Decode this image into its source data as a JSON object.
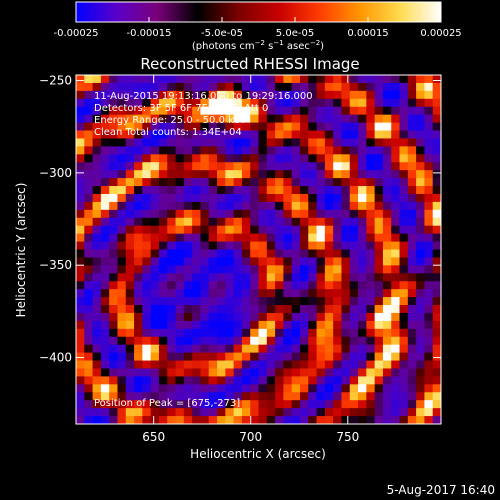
{
  "colorbar": {
    "ticks": [
      "-0.00025",
      "-0.00015",
      "-5.0e-05",
      "5.0e-05",
      "0.00015",
      "0.00025"
    ],
    "tick_values": [
      -0.00025,
      -0.00015,
      -5e-05,
      5e-05,
      0.00015,
      0.00025
    ],
    "range": [
      -0.00025,
      0.00025
    ],
    "unit": {
      "base": "(photons cm",
      "exp1": "−2",
      "mid1": " s",
      "exp2": "−1",
      "mid2": " asec",
      "exp3": "−2",
      "end": ")"
    },
    "colors": [
      "#0000ff",
      "#5a00c8",
      "#7a007a",
      "#000000",
      "#7a0000",
      "#c80000",
      "#ff3c00",
      "#ff9600",
      "#ffdc50",
      "#ffffff"
    ]
  },
  "chart_data": {
    "type": "heatmap",
    "title": "Reconstructed RHESSI Image",
    "xlabel": "Heliocentric X (arcsec)",
    "ylabel": "Heliocentric Y (arcsec)",
    "xlim": [
      610,
      798
    ],
    "ylim": [
      -436,
      -247
    ],
    "xticks": [
      650,
      700,
      750
    ],
    "yticks": [
      -250,
      -300,
      -350,
      -400
    ],
    "xtick_labels": [
      "650",
      "700",
      "750"
    ],
    "ytick_labels": [
      "−250",
      "−300",
      "−350",
      "−400"
    ],
    "grid": false,
    "annotations": [
      "11-Aug-2015 19:13:16.000 to 19:29:16.000",
      "Detectors: 3F 5F 6F 7F 8F 9F, Att 0",
      "Energy Range: 25.0 - 50.0 keV",
      "Clean    Total counts: 1.34E+04"
    ],
    "peak_label": "Position of Peak = [675,-273]",
    "peak_position": [
      675,
      -273
    ],
    "value_range": [
      -0.00025,
      0.00025
    ]
  },
  "footer": {
    "timestamp": "5-Aug-2017 16:40"
  }
}
